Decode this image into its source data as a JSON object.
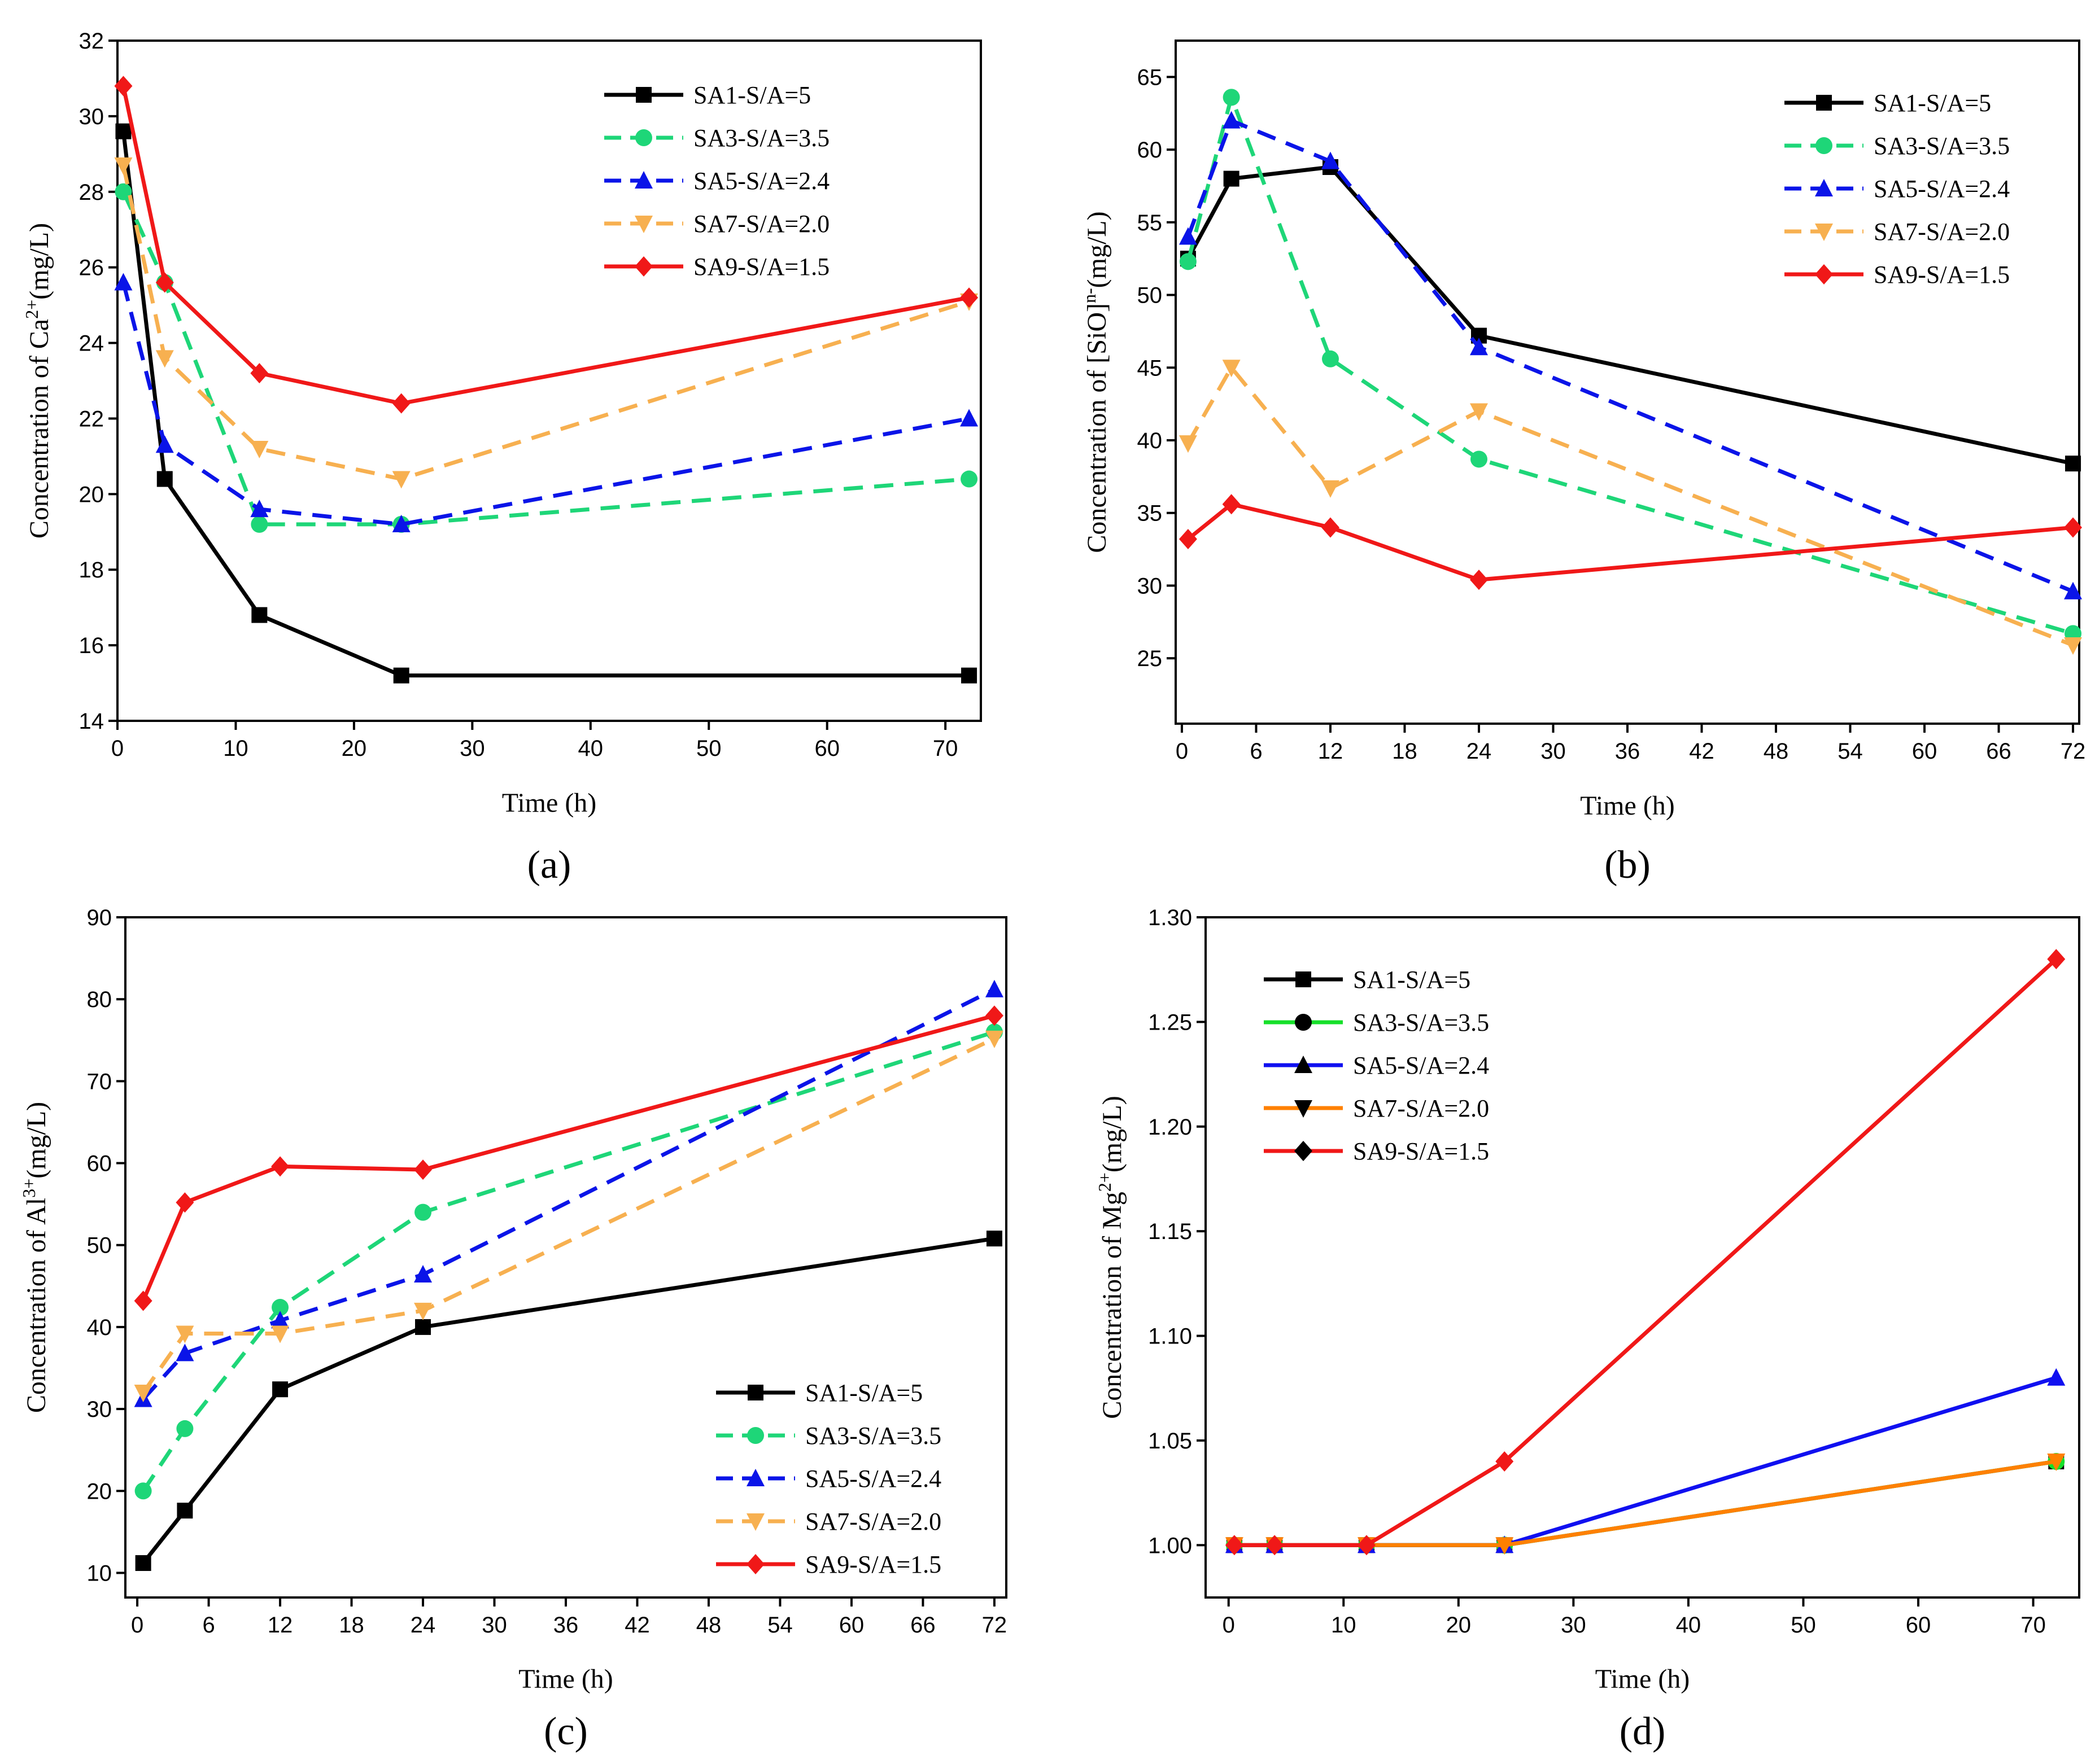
{
  "chart_data": [
    {
      "type": "line",
      "panel": "(a)",
      "xlabel": "Time (h)",
      "ylabel": "Concentration of Ca2+(mg/L)",
      "ylabel_base": "Concentration of Ca",
      "ylabel_sup": "2+",
      "ylabel_tail": "(mg/L)",
      "xlim": [
        0,
        73
      ],
      "ylim": [
        14,
        32
      ],
      "xticks": [
        0,
        10,
        20,
        30,
        40,
        50,
        60,
        70
      ],
      "yticks": [
        14,
        16,
        18,
        20,
        22,
        24,
        26,
        28,
        30,
        32
      ],
      "legend_position": "top-right",
      "series": [
        {
          "name": "SA1-S/A=5",
          "color": "#000000",
          "dash": "solid",
          "marker": "square",
          "x": [
            0.5,
            4,
            12,
            24,
            72
          ],
          "values": [
            29.6,
            20.4,
            16.8,
            15.2,
            15.2
          ]
        },
        {
          "name": "SA3-S/A=3.5",
          "color": "#1ed678",
          "dash": "dashed",
          "marker": "circle",
          "x": [
            0.5,
            4,
            12,
            24,
            72
          ],
          "values": [
            28.0,
            25.6,
            19.2,
            19.2,
            20.4
          ]
        },
        {
          "name": "SA5-S/A=2.4",
          "color": "#0a14e8",
          "dash": "dashed",
          "marker": "triangle-up",
          "x": [
            0.5,
            4,
            12,
            24,
            72
          ],
          "values": [
            25.6,
            21.3,
            19.6,
            19.2,
            22.0
          ]
        },
        {
          "name": "SA7-S/A=2.0",
          "color": "#f7b050",
          "dash": "dashed",
          "marker": "triangle-down",
          "x": [
            0.5,
            4,
            12,
            24,
            72
          ],
          "values": [
            28.7,
            23.6,
            21.2,
            20.4,
            25.1
          ]
        },
        {
          "name": "SA9-S/A=1.5",
          "color": "#f01818",
          "dash": "solid",
          "marker": "diamond",
          "x": [
            0.5,
            4,
            12,
            24,
            72
          ],
          "values": [
            30.8,
            25.6,
            23.2,
            22.4,
            25.2
          ]
        }
      ]
    },
    {
      "type": "line",
      "panel": "(b)",
      "xlabel": "Time (h)",
      "ylabel": "Concentration of [SiO]n-(mg/L)",
      "ylabel_base": "Concentration of [SiO]",
      "ylabel_sup": "n-",
      "ylabel_tail": "(mg/L)",
      "xlim": [
        -0.5,
        72.5
      ],
      "ylim": [
        20.5,
        67.5
      ],
      "xticks": [
        0,
        6,
        12,
        18,
        24,
        30,
        36,
        42,
        48,
        54,
        60,
        66,
        72
      ],
      "yticks": [
        25,
        30,
        35,
        40,
        45,
        50,
        55,
        60,
        65
      ],
      "legend_position": "top-right",
      "series": [
        {
          "name": "SA1-S/A=5",
          "color": "#000000",
          "dash": "solid",
          "marker": "square",
          "x": [
            0.5,
            4,
            12,
            24,
            72
          ],
          "values": [
            52.5,
            58.0,
            58.8,
            47.2,
            38.4
          ]
        },
        {
          "name": "SA3-S/A=3.5",
          "color": "#1ed678",
          "dash": "dashed",
          "marker": "circle",
          "x": [
            0.5,
            4,
            12,
            24,
            72
          ],
          "values": [
            52.3,
            63.6,
            45.6,
            38.7,
            26.7
          ]
        },
        {
          "name": "SA5-S/A=2.4",
          "color": "#0a14e8",
          "dash": "dashed",
          "marker": "triangle-up",
          "x": [
            0.5,
            4,
            12,
            24,
            72
          ],
          "values": [
            54.0,
            62.0,
            59.2,
            46.4,
            29.6
          ]
        },
        {
          "name": "SA7-S/A=2.0",
          "color": "#f7b050",
          "dash": "dashed",
          "marker": "triangle-down",
          "x": [
            0.5,
            4,
            12,
            24,
            72
          ],
          "values": [
            39.8,
            45.0,
            36.7,
            42.0,
            25.9
          ]
        },
        {
          "name": "SA9-S/A=1.5",
          "color": "#f01818",
          "dash": "solid",
          "marker": "diamond",
          "x": [
            0.5,
            4,
            12,
            24,
            72
          ],
          "values": [
            33.2,
            35.6,
            34.0,
            30.4,
            34.0
          ]
        }
      ]
    },
    {
      "type": "line",
      "panel": "(c)",
      "xlabel": "Time (h)",
      "ylabel": "Concentration of Al3+(mg/L)",
      "ylabel_base": "Concentration of Al",
      "ylabel_sup": "3+",
      "ylabel_tail": "(mg/L)",
      "xlim": [
        -1,
        73
      ],
      "ylim": [
        7,
        90
      ],
      "xticks": [
        0,
        6,
        12,
        18,
        24,
        30,
        36,
        42,
        48,
        54,
        60,
        66,
        72
      ],
      "yticks": [
        10,
        20,
        30,
        40,
        50,
        60,
        70,
        80,
        90
      ],
      "legend_position": "bottom-right",
      "series": [
        {
          "name": "SA1-S/A=5",
          "color": "#000000",
          "dash": "solid",
          "marker": "square",
          "x": [
            0.5,
            4,
            12,
            24,
            72
          ],
          "values": [
            11.2,
            17.6,
            32.4,
            40.0,
            50.8
          ]
        },
        {
          "name": "SA3-S/A=3.5",
          "color": "#1ed678",
          "dash": "dashed",
          "marker": "circle",
          "x": [
            0.5,
            4,
            12,
            24,
            72
          ],
          "values": [
            20.0,
            27.6,
            42.4,
            54.0,
            76.0
          ]
        },
        {
          "name": "SA5-S/A=2.4",
          "color": "#0a14e8",
          "dash": "dashed",
          "marker": "triangle-up",
          "x": [
            0.5,
            4,
            12,
            24,
            72
          ],
          "values": [
            31.2,
            36.8,
            40.8,
            46.4,
            81.2
          ]
        },
        {
          "name": "SA7-S/A=2.0",
          "color": "#f7b050",
          "dash": "dashed",
          "marker": "triangle-down",
          "x": [
            0.5,
            4,
            12,
            24,
            72
          ],
          "values": [
            32.0,
            39.2,
            39.2,
            42.0,
            75.2
          ]
        },
        {
          "name": "SA9-S/A=1.5",
          "color": "#f01818",
          "dash": "solid",
          "marker": "diamond",
          "x": [
            0.5,
            4,
            12,
            24,
            72
          ],
          "values": [
            43.2,
            55.2,
            59.6,
            59.2,
            78.0
          ]
        }
      ]
    },
    {
      "type": "line",
      "panel": "(d)",
      "xlabel": "Time (h)",
      "ylabel": "Concentration of Mg2+(mg/L)",
      "ylabel_base": "Concentration of Mg",
      "ylabel_sup": "2+",
      "ylabel_tail": "(mg/L)",
      "xlim": [
        -2,
        74
      ],
      "ylim": [
        0.975,
        1.3
      ],
      "xticks": [
        0,
        10,
        20,
        30,
        40,
        50,
        60,
        70
      ],
      "yticks": [
        1.0,
        1.05,
        1.1,
        1.15,
        1.2,
        1.25,
        1.3
      ],
      "ytick_decimals": 2,
      "legend_position": "top-left",
      "series": [
        {
          "name": "SA1-S/A=5",
          "color": "#000000",
          "dash": "solid",
          "marker": "square",
          "x": [
            0.5,
            4,
            12,
            24,
            72
          ],
          "values": [
            1.0,
            1.0,
            1.0,
            1.0,
            1.04
          ]
        },
        {
          "name": "SA3-S/A=3.5",
          "color": "#16e02a",
          "dash": "solid",
          "marker": "circle",
          "x": [
            0.5,
            4,
            12,
            24,
            72
          ],
          "values": [
            1.0,
            1.0,
            1.0,
            1.0,
            1.04
          ]
        },
        {
          "name": "SA5-S/A=2.4",
          "color": "#1010f0",
          "dash": "solid",
          "marker": "triangle-up",
          "x": [
            0.5,
            4,
            12,
            24,
            72
          ],
          "values": [
            1.0,
            1.0,
            1.0,
            1.0,
            1.08
          ]
        },
        {
          "name": "SA7-S/A=2.0",
          "color": "#ff8000",
          "dash": "solid",
          "marker": "triangle-down",
          "x": [
            0.5,
            4,
            12,
            24,
            72
          ],
          "values": [
            1.0,
            1.0,
            1.0,
            1.0,
            1.04
          ]
        },
        {
          "name": "SA9-S/A=1.5",
          "color": "#f01818",
          "dash": "solid",
          "marker": "diamond",
          "x": [
            0.5,
            4,
            12,
            24,
            72
          ],
          "values": [
            1.0,
            1.0,
            1.0,
            1.04,
            1.28
          ]
        }
      ],
      "legend_marker_color": "#000000"
    }
  ]
}
